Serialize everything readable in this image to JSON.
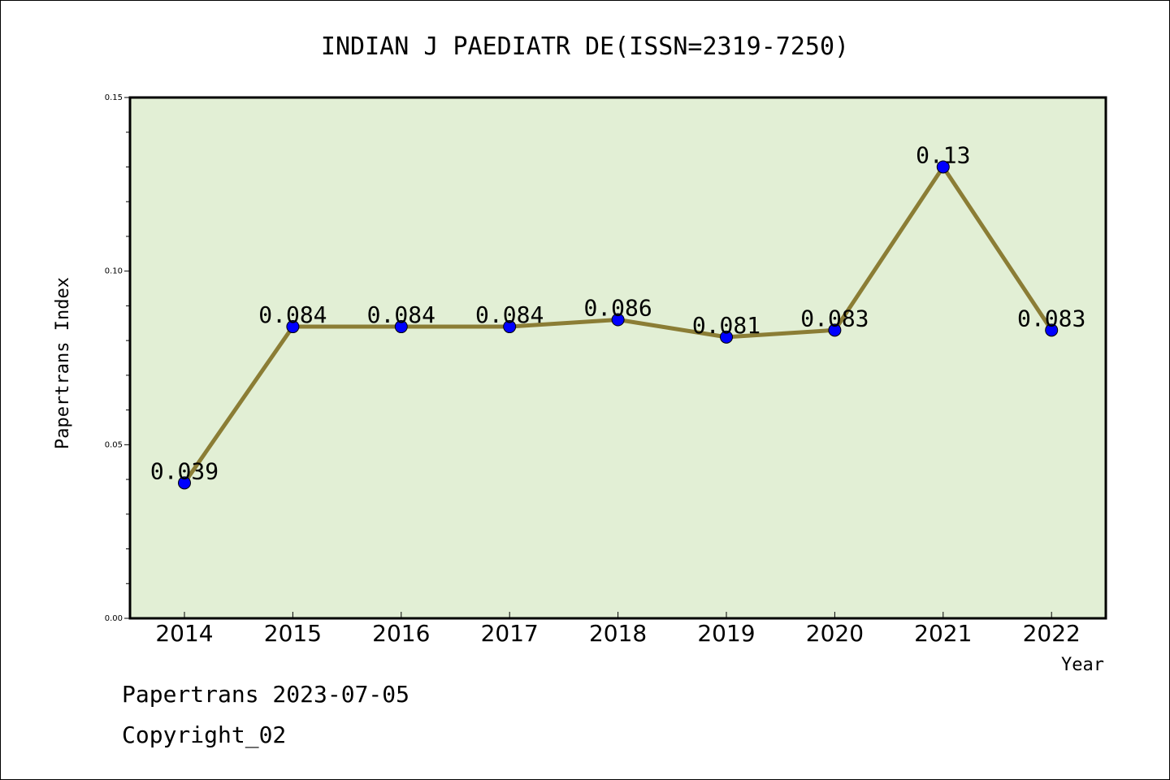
{
  "chart_data": {
    "type": "line",
    "title": "INDIAN J PAEDIATR DE(ISSN=2319-7250)",
    "xlabel": "Year",
    "ylabel": "Papertrans Index",
    "categories": [
      "2014",
      "2015",
      "2016",
      "2017",
      "2018",
      "2019",
      "2020",
      "2021",
      "2022"
    ],
    "series": [
      {
        "values": [
          0.039,
          0.084,
          0.084,
          0.084,
          0.086,
          0.081,
          0.083,
          0.13,
          0.083
        ]
      }
    ],
    "data_labels": [
      "0.039",
      "0.084",
      "0.084",
      "0.084",
      "0.086",
      "0.081",
      "0.083",
      "0.13",
      "0.083"
    ],
    "ylim": [
      0,
      0.15
    ],
    "yticks": [
      "0.00",
      "0.05",
      "0.10",
      "0.15"
    ],
    "grid": false,
    "colors": {
      "plot_background": "#e2efd5",
      "line": "#8b7d35",
      "marker": "#0000ff"
    }
  },
  "footer": {
    "line1": "Papertrans 2023-07-05",
    "line2": "Copyright_02"
  }
}
